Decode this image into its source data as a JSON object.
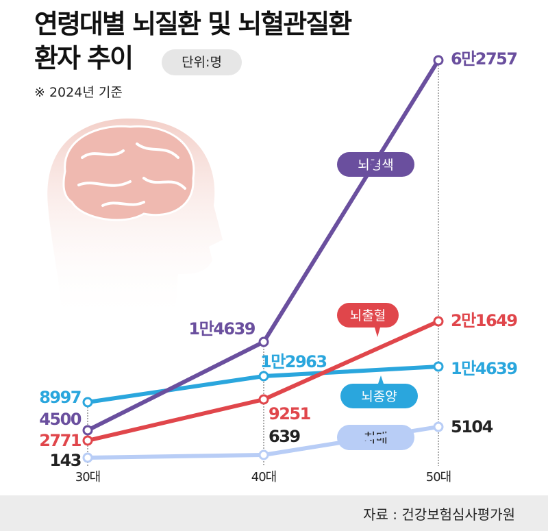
{
  "header": {
    "title_line1": "연령대별 뇌질환 및 뇌혈관질환",
    "title_line2": "환자 추이",
    "unit_badge": "단위:명",
    "note": "※ 2024년 기준"
  },
  "footer": {
    "source": "자료 : 건강보험심사평가원"
  },
  "chart_data": {
    "type": "line",
    "categories": [
      "30대",
      "40대",
      "50대"
    ],
    "grid": false,
    "series": [
      {
        "name": "뇌경색",
        "color": "#6a4f9e",
        "values": [
          4500,
          14639,
          62757
        ],
        "labels": [
          "4500",
          "1만4639",
          "6만2757"
        ],
        "label_color": "#6a4f9e"
      },
      {
        "name": "뇌출혈",
        "color": "#e0464b",
        "values": [
          2771,
          9251,
          21649
        ],
        "labels": [
          "2771",
          "9251",
          "2만1649"
        ],
        "label_color": "#e0464b"
      },
      {
        "name": "뇌종양",
        "color": "#2aa6dd",
        "values": [
          8997,
          12963,
          14639
        ],
        "labels": [
          "8997",
          "1만2963",
          "1만4639"
        ],
        "label_color": "#2aa6dd"
      },
      {
        "name": "치매",
        "color": "#b8cdf6",
        "values": [
          143,
          639,
          5104
        ],
        "labels": [
          "143",
          "639",
          "5104"
        ],
        "label_color": "#222222"
      }
    ]
  }
}
